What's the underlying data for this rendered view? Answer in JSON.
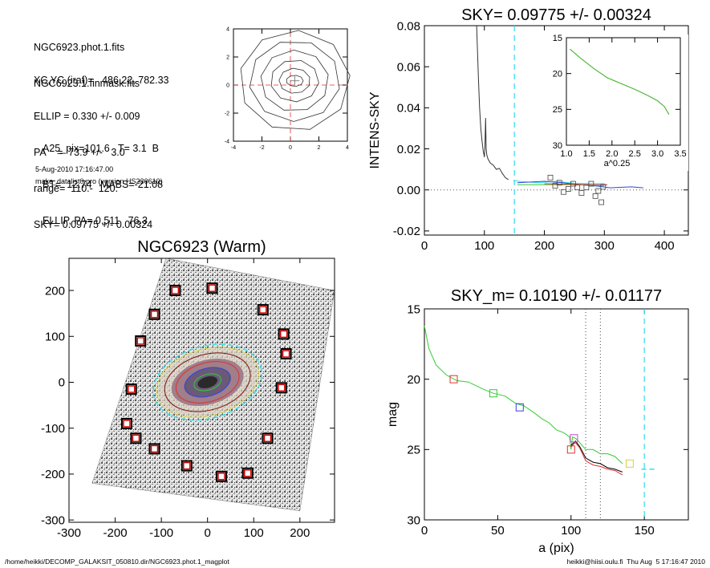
{
  "info": {
    "files": [
      "NGC6923.phot.1.fits",
      "NGC6923.1.finmask.fits"
    ],
    "params": [
      "XC,YC (iraf)=   486.22, 782.33",
      "ELLIP = 0.330 +/- 0.009",
      "PA    =  73.9 +/-   3.0",
      "range=  110.-  120.",
      "SKY= 0.09775 +/- 0.00324"
    ],
    "props": [
      "A25_pix=101.6   T= 3.1  B",
      "BT=  12.74   MABS=-21.08",
      "ELLIP, PA= 0.511   76.3"
    ],
    "date": "5-Aug-2010 17:16:47.00",
    "program": "make_datalist0.pro (version HS230610)"
  },
  "footer": {
    "left": "/home/heikki/DECOMP_GALAKSIT_050810.dir/NGC6923.phot.1_magplot",
    "right": "heikki@hiisi.oulu.fi  Thu Aug  5 17:16:47 2010"
  },
  "colors": {
    "cyan": "#33ddee",
    "green": "#33cc33",
    "red": "#e03030",
    "blue": "#3344dd",
    "magenta": "#cc44cc",
    "box": "#cc0000"
  },
  "chart_data": [
    {
      "type": "contour",
      "title": "",
      "xlim": [
        -4,
        4
      ],
      "ylim": [
        -4,
        4
      ],
      "xticks": [
        -4,
        -2,
        0,
        2,
        4
      ],
      "yticks": [
        -4,
        -2,
        0,
        2,
        4
      ],
      "center": [
        0.3,
        0.3
      ],
      "contour_semi_axes": [
        [
          0.6,
          0.4
        ],
        [
          1.1,
          0.9
        ],
        [
          1.7,
          1.5
        ],
        [
          2.4,
          2.2
        ],
        [
          3.2,
          2.9
        ],
        [
          3.9,
          3.6
        ]
      ]
    },
    {
      "type": "line",
      "title": "SKY= 0.09775 +/- 0.00324",
      "xlabel": "",
      "ylabel": "INTENS-SKY",
      "xlim": [
        0,
        440
      ],
      "ylim": [
        -0.022,
        0.08
      ],
      "xticks": [
        0,
        100,
        200,
        300,
        400
      ],
      "yticks": [
        -0.02,
        0.0,
        0.02,
        0.04,
        0.06,
        0.08
      ],
      "ytick_labels": [
        "-0.02",
        "0.00",
        "0.02",
        "0.04",
        "0.06",
        "0.08"
      ],
      "vline_x": 150,
      "profile": [
        [
          87,
          0.08
        ],
        [
          88,
          0.072
        ],
        [
          90,
          0.055
        ],
        [
          92,
          0.04
        ],
        [
          94,
          0.03
        ],
        [
          96,
          0.024
        ],
        [
          98,
          0.019
        ],
        [
          100,
          0.016
        ],
        [
          101,
          0.022
        ],
        [
          102,
          0.035
        ],
        [
          103,
          0.02
        ],
        [
          104,
          0.017
        ],
        [
          106,
          0.015
        ],
        [
          110,
          0.013
        ],
        [
          115,
          0.012
        ],
        [
          120,
          0.01
        ],
        [
          125,
          0.0105
        ],
        [
          130,
          0.008
        ],
        [
          135,
          0.006
        ],
        [
          140,
          0.005
        ]
      ],
      "series": [
        {
          "color": "cyan",
          "points": [
            [
              148,
              0.0045
            ],
            [
              165,
              0.004
            ],
            [
              190,
              0.0035
            ],
            [
              220,
              0.0042
            ],
            [
              250,
              0.0032
            ],
            [
              285,
              0.003
            ],
            [
              300,
              0.003
            ]
          ]
        },
        {
          "color": "blue",
          "points": [
            [
              155,
              0.0035
            ],
            [
              200,
              0.0042
            ],
            [
              230,
              0.0035
            ],
            [
              250,
              0.0028
            ],
            [
              290,
              0.0018
            ],
            [
              310,
              0.001
            ],
            [
              345,
              0.0015
            ],
            [
              365,
              0.001
            ]
          ]
        },
        {
          "color": "green",
          "points": [
            [
              155,
              0.0025
            ],
            [
              250,
              0.0025
            ],
            [
              300,
              0.002
            ]
          ]
        },
        {
          "color": "red",
          "points": [
            [
              200,
              0.003
            ],
            [
              240,
              0.0028
            ],
            [
              280,
              0.0025
            ],
            [
              305,
              0.0025
            ]
          ]
        }
      ],
      "squares": [
        [
          210,
          0.006
        ],
        [
          218,
          0.002
        ],
        [
          225,
          0.0035
        ],
        [
          232,
          -0.001
        ],
        [
          240,
          0.0005
        ],
        [
          248,
          0.003
        ],
        [
          255,
          0.0012
        ],
        [
          262,
          -0.0015
        ],
        [
          270,
          0.0012
        ],
        [
          278,
          0.003
        ],
        [
          285,
          -0.003
        ],
        [
          290,
          -0.0005
        ],
        [
          295,
          -0.006
        ],
        [
          298,
          0.0015
        ]
      ],
      "inset": {
        "xlim": [
          1.0,
          3.5
        ],
        "ylim": [
          15,
          30
        ],
        "xticks": [
          1.0,
          1.5,
          2.0,
          2.5,
          3.0,
          3.5
        ],
        "xtick_labels": [
          "1.0",
          "1.5",
          "2.0",
          "2.5",
          "3.0",
          "3.5"
        ],
        "yticks": [
          15,
          20,
          25,
          30
        ],
        "xlabel": "a^0.25",
        "line": [
          [
            1.08,
            16.6
          ],
          [
            1.3,
            17.8
          ],
          [
            1.6,
            19.3
          ],
          [
            1.9,
            20.6
          ],
          [
            2.2,
            21.4
          ],
          [
            2.5,
            22.2
          ],
          [
            2.8,
            23.1
          ],
          [
            3.0,
            23.8
          ],
          [
            3.15,
            24.6
          ],
          [
            3.25,
            25.7
          ]
        ]
      }
    },
    {
      "type": "image",
      "title": "NGC6923 (Warm)",
      "xlim": [
        -300,
        275
      ],
      "ylim": [
        -305,
        270
      ],
      "xticks": [
        -300,
        -200,
        -100,
        0,
        100,
        200
      ],
      "yticks": [
        -300,
        -200,
        -100,
        0,
        100,
        200
      ],
      "frame_corners": [
        [
          -90,
          270
        ],
        [
          275,
          200
        ],
        [
          200,
          -280
        ],
        [
          -250,
          -220
        ]
      ],
      "ellipses": [
        {
          "a": 120,
          "b": 78,
          "angle": 16,
          "color": "cyan",
          "dashed": true
        },
        {
          "a": 113,
          "b": 72,
          "angle": 16,
          "color": "yellow",
          "dashed": false
        },
        {
          "a": 95,
          "b": 60,
          "angle": 16,
          "color": "maroon",
          "dashed": false
        },
        {
          "a": 70,
          "b": 42,
          "angle": 16,
          "color": "red",
          "dashed": false
        },
        {
          "a": 50,
          "b": 30,
          "angle": 16,
          "color": "blue",
          "dashed": false
        },
        {
          "a": 30,
          "b": 17,
          "angle": 16,
          "color": "green",
          "dashed": false
        }
      ],
      "squares": [
        [
          -70,
          200
        ],
        [
          10,
          205
        ],
        [
          -115,
          148
        ],
        [
          120,
          158
        ],
        [
          -145,
          90
        ],
        [
          165,
          105
        ],
        [
          170,
          62
        ],
        [
          160,
          -12
        ],
        [
          -165,
          -15
        ],
        [
          -175,
          -90
        ],
        [
          -155,
          -122
        ],
        [
          -115,
          -145
        ],
        [
          130,
          -122
        ],
        [
          -45,
          -182
        ],
        [
          30,
          -205
        ],
        [
          87,
          -198
        ]
      ]
    },
    {
      "type": "line",
      "title": "SKY_m=  0.10190 +/- 0.01177",
      "xlabel": "a (pix)",
      "ylabel": "mag",
      "xlim": [
        0,
        180
      ],
      "ylim": [
        30,
        15
      ],
      "xticks": [
        0,
        50,
        100,
        150
      ],
      "yticks": [
        15,
        20,
        25,
        30
      ],
      "vlines_dotted": [
        110,
        120
      ],
      "vline_dashed": 150,
      "sky_segment": [
        [
          148,
          26.4
        ],
        [
          158,
          26.4
        ]
      ],
      "series": [
        {
          "color": "green",
          "points": [
            [
              0,
              16.2
            ],
            [
              3,
              17.8
            ],
            [
              8,
              19.0
            ],
            [
              15,
              19.7
            ],
            [
              22,
              20.1
            ],
            [
              30,
              20.2
            ],
            [
              40,
              20.7
            ],
            [
              47,
              21.0
            ],
            [
              55,
              21.2
            ],
            [
              62,
              21.7
            ],
            [
              68,
              21.9
            ],
            [
              75,
              22.4
            ],
            [
              80,
              22.8
            ],
            [
              85,
              23.1
            ],
            [
              90,
              23.6
            ],
            [
              95,
              23.8
            ],
            [
              99,
              24.1
            ],
            [
              100,
              25.0
            ],
            [
              101,
              24.1
            ],
            [
              103,
              24.2
            ],
            [
              105,
              24.4
            ],
            [
              110,
              25.0
            ],
            [
              115,
              25.0
            ],
            [
              120,
              25.3
            ],
            [
              125,
              25.3
            ],
            [
              130,
              25.5
            ],
            [
              135,
              26.0
            ]
          ]
        },
        {
          "color": "black",
          "points": [
            [
              100,
              24.7
            ],
            [
              103,
              24.4
            ],
            [
              106,
              24.8
            ],
            [
              110,
              25.6
            ],
            [
              115,
              25.9
            ],
            [
              120,
              26.0
            ],
            [
              125,
              26.3
            ],
            [
              130,
              26.4
            ],
            [
              135,
              26.6
            ]
          ]
        },
        {
          "color": "red",
          "points": [
            [
              100,
              24.8
            ],
            [
              103,
              24.5
            ],
            [
              106,
              24.9
            ],
            [
              110,
              25.8
            ],
            [
              115,
              26.1
            ],
            [
              120,
              26.2
            ],
            [
              125,
              26.4
            ],
            [
              130,
              26.5
            ],
            [
              135,
              26.8
            ]
          ]
        }
      ],
      "squares": [
        {
          "x": 20,
          "y": 20.0,
          "color": "red"
        },
        {
          "x": 47,
          "y": 21.0,
          "color": "green"
        },
        {
          "x": 65,
          "y": 22.0,
          "color": "blue"
        },
        {
          "x": 100,
          "y": 25.0,
          "color": "red"
        },
        {
          "x": 102,
          "y": 24.2,
          "color": "magenta"
        },
        {
          "x": 140,
          "y": 26.0,
          "color": "yellow"
        }
      ]
    }
  ]
}
